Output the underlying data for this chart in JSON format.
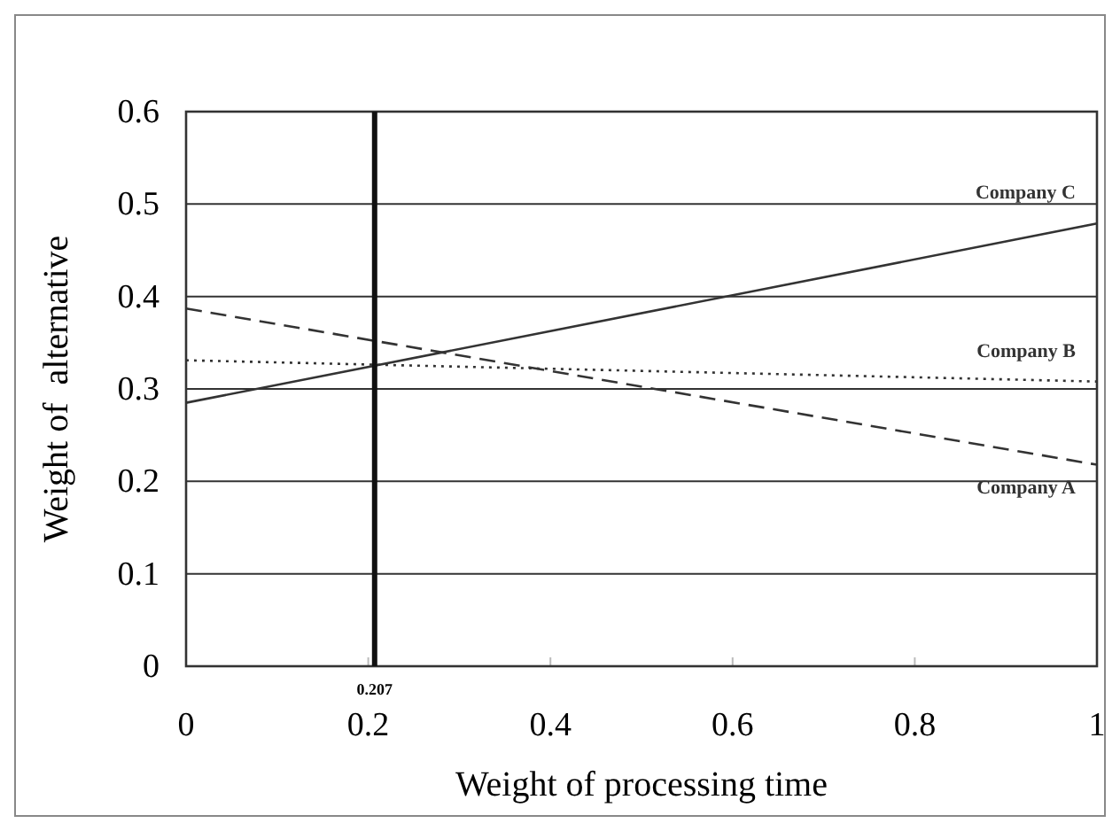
{
  "chart_data": {
    "type": "line",
    "xlabel": "Weight of processing time",
    "ylabel": "Weight of  alternative",
    "x": [
      0,
      1
    ],
    "series": [
      {
        "name": "Company A",
        "color": "#333333",
        "values": [
          0.387,
          0.218
        ],
        "line_style": "dashed"
      },
      {
        "name": "Company B",
        "color": "#333333",
        "values": [
          0.331,
          0.308
        ],
        "line_style": "dotted"
      },
      {
        "name": "Company C",
        "color": "#333333",
        "values": [
          0.285,
          0.479
        ],
        "line_style": "solid"
      }
    ],
    "xlim": [
      0,
      1
    ],
    "xticks": [
      0,
      0.2,
      0.4,
      0.6,
      0.8,
      1
    ],
    "ylim": [
      0,
      0.6
    ],
    "yticks": [
      0,
      0.1,
      0.2,
      0.3,
      0.4,
      0.5,
      0.6
    ],
    "grid": "y",
    "legend": false,
    "marker": "none",
    "ref_lines": [
      {
        "axis": "x",
        "value": 0.207,
        "label": "0.207",
        "color": "#111111"
      }
    ]
  }
}
